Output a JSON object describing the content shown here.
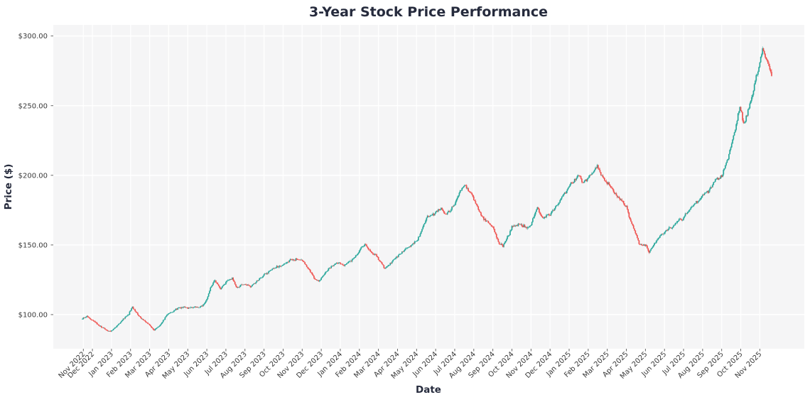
{
  "title": "3-Year Stock Price Performance",
  "chart_data": {
    "type": "candlestick",
    "title": "3-Year Stock Price Performance",
    "xlabel": "Date",
    "ylabel": "Price ($)",
    "grid": true,
    "legend": false,
    "up_color": "#26a69a",
    "down_color": "#ef5350",
    "plot_bg_color": "#f5f5f6",
    "grid_color": "#ffffff",
    "title_color": "#262b3d",
    "tick_color": "#3a3a3a",
    "ylim": [
      75.5,
      308
    ],
    "y_ticks": [
      100,
      150,
      200,
      250,
      300
    ],
    "y_tick_labels": [
      "$100.00",
      "$150.00",
      "$200.00",
      "$250.00",
      "$300.00"
    ],
    "x_tick_labels": [
      "Nov 2022",
      "Dec 2022",
      "Jan 2023",
      "Feb 2023",
      "Mar 2023",
      "Apr 2023",
      "May 2023",
      "Jun 2023",
      "Jul 2023",
      "Aug 2023",
      "Sep 2023",
      "Oct 2023",
      "Nov 2023",
      "Dec 2023",
      "Jan 2024",
      "Feb 2024",
      "Mar 2024",
      "Apr 2024",
      "May 2024",
      "Jun 2024",
      "Jul 2024",
      "Aug 2024",
      "Sep 2024",
      "Oct 2024",
      "Nov 2024",
      "Dec 2024",
      "Jan 2025",
      "Feb 2025",
      "Mar 2025",
      "Apr 2025",
      "May 2025",
      "Jun 2025",
      "Jul 2025",
      "Aug 2025",
      "Sep 2025",
      "Oct 2025",
      "Nov 2025"
    ],
    "x_tick_days": [
      1,
      11,
      32,
      53,
      74,
      95,
      116,
      137,
      158,
      179,
      200,
      221,
      242,
      263,
      284,
      305,
      326,
      347,
      368,
      389,
      410,
      431,
      452,
      473,
      494,
      515,
      536,
      557,
      578,
      599,
      620,
      641,
      662,
      683,
      704,
      725,
      746
    ],
    "total_days": 760,
    "price_path_anchors": {
      "day": [
        0,
        5,
        9,
        11,
        19,
        30,
        32,
        38,
        45,
        51,
        55,
        61,
        68,
        74,
        79,
        87,
        93,
        95,
        103,
        112,
        116,
        124,
        133,
        137,
        141,
        146,
        152,
        158,
        165,
        170,
        179,
        185,
        193,
        200,
        208,
        217,
        221,
        229,
        238,
        242,
        248,
        255,
        260,
        263,
        271,
        280,
        284,
        290,
        299,
        305,
        311,
        317,
        324,
        328,
        333,
        341,
        347,
        355,
        363,
        368,
        374,
        380,
        389,
        395,
        401,
        410,
        416,
        421,
        428,
        433,
        439,
        447,
        452,
        458,
        463,
        470,
        473,
        481,
        490,
        494,
        501,
        507,
        515,
        525,
        533,
        536,
        541,
        546,
        551,
        557,
        563,
        567,
        573,
        578,
        586,
        594,
        599,
        607,
        614,
        620,
        624,
        630,
        638,
        641,
        649,
        658,
        662,
        669,
        677,
        683,
        691,
        699,
        704,
        711,
        719,
        724,
        728,
        732,
        738,
        742,
        746,
        749,
        752,
        756,
        759
      ],
      "price": [
        97.5,
        99,
        96.5,
        96,
        91.5,
        87.5,
        88,
        92,
        97,
        101,
        105.5,
        100,
        95.5,
        92.5,
        89.5,
        93.5,
        99.5,
        101,
        104,
        105,
        104.5,
        106.5,
        108,
        112,
        120,
        125.5,
        119,
        123.5,
        125.5,
        118.5,
        122.5,
        119.5,
        124.5,
        127.5,
        131.5,
        135,
        136,
        138.5,
        140,
        139.5,
        134.5,
        127,
        123.5,
        126,
        132.5,
        137.5,
        138.5,
        136.5,
        141.5,
        146,
        151.5,
        146.5,
        143.5,
        139,
        133.5,
        139,
        142,
        146.5,
        150.5,
        153.5,
        161,
        169.5,
        172.5,
        176,
        173.5,
        180,
        188.5,
        192.5,
        187,
        181.5,
        172,
        166.5,
        164,
        152.5,
        149,
        158,
        163.5,
        166,
        164.5,
        167,
        176.5,
        169.5,
        172.5,
        179.5,
        188.5,
        191,
        195.5,
        199.5,
        193.5,
        198.5,
        203,
        206.5,
        197.5,
        194.5,
        187,
        179.5,
        175.5,
        162,
        149.5,
        150.5,
        146,
        153,
        158.5,
        160,
        164.5,
        168,
        170,
        174.5,
        178.5,
        184,
        190,
        196.5,
        199,
        212,
        232,
        248,
        237,
        244,
        256,
        268,
        280,
        290,
        284,
        280,
        274
      ]
    },
    "noise_seed": 42
  }
}
